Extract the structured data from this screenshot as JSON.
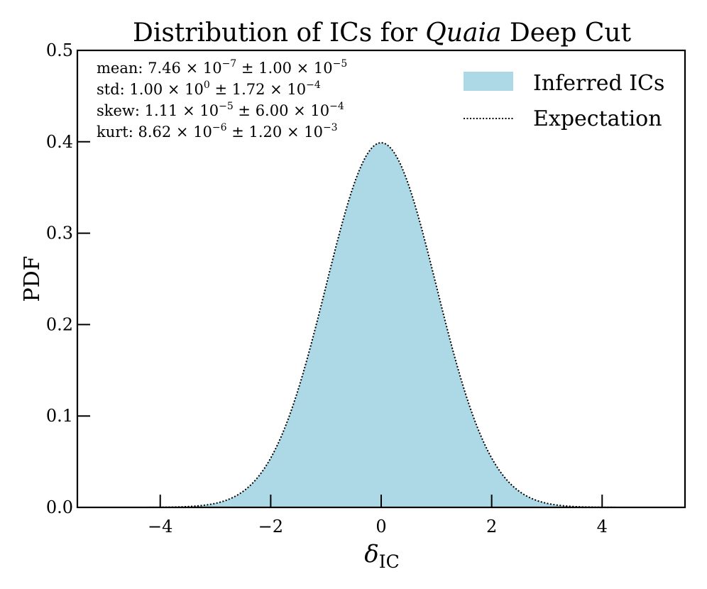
{
  "chart_data": {
    "type": "area",
    "title_prefix": "Distribution of ICs for ",
    "title_italic": "Quaia",
    "title_suffix": " Deep Cut",
    "xlabel_symbol": "δ",
    "xlabel_subscript": "IC",
    "ylabel": "PDF",
    "xlim": [
      -5.5,
      5.5
    ],
    "ylim": [
      0.0,
      0.5
    ],
    "xticks": [
      -4,
      -2,
      0,
      2,
      4
    ],
    "xtick_labels": [
      "−4",
      "−2",
      "0",
      "2",
      "4"
    ],
    "yticks": [
      0.0,
      0.1,
      0.2,
      0.3,
      0.4,
      0.5
    ],
    "ytick_labels": [
      "0.0",
      "0.1",
      "0.2",
      "0.3",
      "0.4",
      "0.5"
    ],
    "grid": false,
    "legend_position": "top-right",
    "series": [
      {
        "name": "Inferred ICs",
        "kind": "filled-area",
        "color": "#add8e6",
        "distribution": "standard-normal",
        "mean": 0.0,
        "std": 1.0
      },
      {
        "name": "Expectation",
        "kind": "dotted-line",
        "color": "#000000",
        "distribution": "standard-normal",
        "mean": 0.0,
        "std": 1.0
      }
    ],
    "stats": [
      {
        "label": "mean: ",
        "value_mant": "7.46",
        "value_exp": "−7",
        "err_mant": "1.00",
        "err_exp": "−5"
      },
      {
        "label": "std: ",
        "value_mant": "1.00",
        "value_exp": "0",
        "err_mant": "1.72",
        "err_exp": "−4"
      },
      {
        "label": "skew: ",
        "value_mant": "1.11",
        "value_exp": "−5",
        "err_mant": "6.00",
        "err_exp": "−4"
      },
      {
        "label": "kurt: ",
        "value_mant": "8.62",
        "value_exp": "−6",
        "err_mant": "1.20",
        "err_exp": "−3"
      }
    ]
  }
}
